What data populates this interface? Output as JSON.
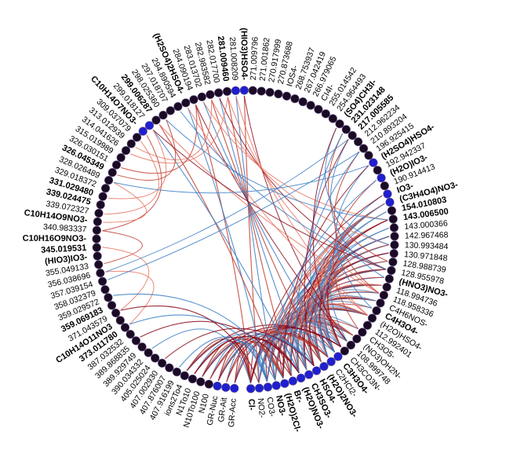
{
  "labels": [
    {
      "text": "Cl-",
      "bold": true
    },
    {
      "text": "NO2-",
      "bold": false
    },
    {
      "text": "CO3-",
      "bold": false
    },
    {
      "text": "NO3-",
      "bold": true
    },
    {
      "text": "(H2O)2Cl-",
      "bold": true
    },
    {
      "text": "Br-",
      "bold": true
    },
    {
      "text": "(H2O)NO3-",
      "bold": true
    },
    {
      "text": "CH3SO3-",
      "bold": true
    },
    {
      "text": "HSO4-",
      "bold": true
    },
    {
      "text": "(H2O)2NO3-",
      "bold": true
    },
    {
      "text": "C2HCl2-",
      "bold": false
    },
    {
      "text": "C3H3O4-",
      "bold": true
    },
    {
      "text": "CH3CO3N-",
      "bold": false
    },
    {
      "text": "108.999748",
      "bold": false
    },
    {
      "text": "(NO3)OH2N-",
      "bold": false
    },
    {
      "text": "CH3O5-",
      "bold": false
    },
    {
      "text": "112.992401",
      "bold": false
    },
    {
      "text": "(H2O)HSO4-",
      "bold": false
    },
    {
      "text": "C4H3O4-",
      "bold": true
    },
    {
      "text": "C4H6NOS-",
      "bold": false
    },
    {
      "text": "118.958336",
      "bold": false
    },
    {
      "text": "118.994736",
      "bold": false
    },
    {
      "text": "(HNO3)NO3-",
      "bold": true
    },
    {
      "text": "128.955978",
      "bold": false
    },
    {
      "text": "128.988739",
      "bold": false
    },
    {
      "text": "130.971848",
      "bold": false
    },
    {
      "text": "130.993484",
      "bold": false
    },
    {
      "text": "142.967468",
      "bold": false
    },
    {
      "text": "143.000366",
      "bold": false
    },
    {
      "text": "143.006500",
      "bold": true
    },
    {
      "text": "154.010803",
      "bold": true
    },
    {
      "text": "(C3H4O4)NO3-",
      "bold": true
    },
    {
      "text": "IO3-",
      "bold": true
    },
    {
      "text": "190.914413",
      "bold": false
    },
    {
      "text": "(H2O)IO3-",
      "bold": true
    },
    {
      "text": "192.942337",
      "bold": false
    },
    {
      "text": "(H2SO4)HSO4-",
      "bold": true
    },
    {
      "text": "196.925415",
      "bold": false
    },
    {
      "text": "210.893204",
      "bold": false
    },
    {
      "text": "212.962234",
      "bold": false
    },
    {
      "text": "217.005585",
      "bold": true
    },
    {
      "text": "231.023148",
      "bold": true
    },
    {
      "text": "(SO4)CH3I-",
      "bold": true
    },
    {
      "text": "254.964493",
      "bold": false
    },
    {
      "text": "255.014542",
      "bold": false
    },
    {
      "text": "CI4I-",
      "bold": false
    },
    {
      "text": "266.979065",
      "bold": false
    },
    {
      "text": "267.042419",
      "bold": false
    },
    {
      "text": "268.753937",
      "bold": false
    },
    {
      "text": "IOS4-",
      "bold": false
    },
    {
      "text": "270.873688",
      "bold": false
    },
    {
      "text": "270.917999",
      "bold": false
    },
    {
      "text": "271.001862",
      "bold": false
    },
    {
      "text": "271.009796",
      "bold": false
    },
    {
      "text": "(HIO3)HSO4-",
      "bold": true
    },
    {
      "text": "281.008209",
      "bold": false
    },
    {
      "text": "281.009460",
      "bold": true
    },
    {
      "text": "282.017700",
      "bold": false
    },
    {
      "text": "282.983582",
      "bold": false
    },
    {
      "text": "283.013702",
      "bold": false
    },
    {
      "text": "284.090194",
      "bold": false
    },
    {
      "text": "(H2SO4)2HSO4-",
      "bold": true
    },
    {
      "text": "294.890594",
      "bold": false
    },
    {
      "text": "297.018707",
      "bold": false
    },
    {
      "text": "298.025360",
      "bold": false
    },
    {
      "text": "299.006287",
      "bold": true
    },
    {
      "text": "299.018127",
      "bold": false
    },
    {
      "text": "C10H14O7NO3-",
      "bold": true
    },
    {
      "text": "309.037079",
      "bold": false
    },
    {
      "text": "313.012939",
      "bold": false
    },
    {
      "text": "314.041626",
      "bold": false
    },
    {
      "text": "315.019989",
      "bold": false
    },
    {
      "text": "326.030151",
      "bold": false
    },
    {
      "text": "326.045349",
      "bold": true
    },
    {
      "text": "328.026489",
      "bold": false
    },
    {
      "text": "329.018372",
      "bold": false
    },
    {
      "text": "331.029480",
      "bold": true
    },
    {
      "text": "339.024475",
      "bold": true
    },
    {
      "text": "339.072327",
      "bold": false
    },
    {
      "text": "C10H14O9NO3-",
      "bold": true
    },
    {
      "text": "340.983337",
      "bold": false
    },
    {
      "text": "C10H16O9NO3-",
      "bold": true
    },
    {
      "text": "345.019531",
      "bold": true
    },
    {
      "text": "(HIO3)IO3-",
      "bold": true
    },
    {
      "text": "355.049133",
      "bold": false
    },
    {
      "text": "356.038696",
      "bold": false
    },
    {
      "text": "357.039154",
      "bold": false
    },
    {
      "text": "358.032379",
      "bold": false
    },
    {
      "text": "359.029572",
      "bold": false
    },
    {
      "text": "359.069183",
      "bold": true
    },
    {
      "text": "371.043579",
      "bold": false
    },
    {
      "text": "C10H14O11NO3",
      "bold": true
    },
    {
      "text": "373.011780",
      "bold": true
    },
    {
      "text": "387.032532",
      "bold": false
    },
    {
      "text": "389.868835",
      "bold": false
    },
    {
      "text": "389.929749",
      "bold": false
    },
    {
      "text": "390.034332",
      "bold": false
    },
    {
      "text": "405.025024",
      "bold": false
    },
    {
      "text": "407.002930",
      "bold": false
    },
    {
      "text": "407.876007",
      "bold": false
    },
    {
      "text": "407.916199",
      "bold": false
    },
    {
      "text": "ions2To4",
      "bold": false
    },
    {
      "text": "N1To10",
      "bold": false
    },
    {
      "text": "N10To100",
      "bold": false
    },
    {
      "text": "N100",
      "bold": false
    },
    {
      "text": "GR-Nuc",
      "bold": false
    },
    {
      "text": "GR-Ait",
      "bold": false
    },
    {
      "text": "GR-Acc",
      "bold": false
    }
  ],
  "colors": {
    "node_dark": "#1a0a24",
    "node_blue": "#1f1fd0",
    "edge_red": "#c0392b",
    "edge_darkred": "#8b0a1a",
    "edge_salmon": "#e8735f",
    "edge_blue": "#3a7dc4",
    "edge_steel": "#5a7fb0"
  }
}
